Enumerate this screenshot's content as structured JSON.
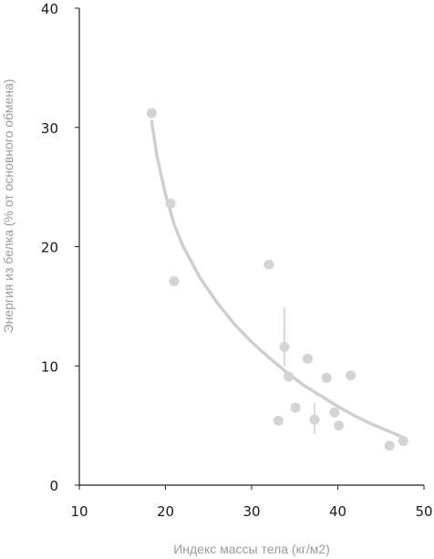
{
  "chart_data": {
    "type": "scatter",
    "title": "",
    "xlabel": "Индекс массы тела (кг/м2)",
    "ylabel": "Энергия из белка (% от основного обмена)",
    "xlim": [
      10,
      50
    ],
    "ylim": [
      0,
      40
    ],
    "xticks": [
      "10",
      "20",
      "30",
      "40",
      "50"
    ],
    "yticks": [
      "0",
      "10",
      "20",
      "30",
      "40"
    ],
    "grid": false,
    "colors": {
      "points": "#d4d4d4",
      "curve": "#cfcfcf",
      "error_bars": "#b5b5b5",
      "axis": "#222222",
      "axis_title": "#9b9b9b"
    },
    "points": [
      {
        "x": 18.4,
        "y": 31.2
      },
      {
        "x": 20.6,
        "y": 23.6
      },
      {
        "x": 21.0,
        "y": 17.1
      },
      {
        "x": 32.0,
        "y": 18.5
      },
      {
        "x": 33.8,
        "y": 11.6
      },
      {
        "x": 34.3,
        "y": 9.1
      },
      {
        "x": 35.1,
        "y": 6.5
      },
      {
        "x": 33.1,
        "y": 5.4
      },
      {
        "x": 36.5,
        "y": 10.6
      },
      {
        "x": 37.3,
        "y": 5.5
      },
      {
        "x": 38.7,
        "y": 9.0
      },
      {
        "x": 39.6,
        "y": 6.1
      },
      {
        "x": 40.1,
        "y": 5.0
      },
      {
        "x": 41.5,
        "y": 9.2
      },
      {
        "x": 46.0,
        "y": 3.3
      },
      {
        "x": 47.6,
        "y": 3.7
      }
    ],
    "error_bars": [
      {
        "x": 33.8,
        "low": 10.0,
        "high": 14.9
      },
      {
        "x": 37.3,
        "low": 4.3,
        "high": 6.9
      }
    ],
    "trend_curve": [
      {
        "x": 18.4,
        "y": 30.5
      },
      {
        "x": 19.0,
        "y": 27.6
      },
      {
        "x": 20.0,
        "y": 24.4
      },
      {
        "x": 21.0,
        "y": 21.9
      },
      {
        "x": 22.0,
        "y": 20.1
      },
      {
        "x": 24.0,
        "y": 17.4
      },
      {
        "x": 26.0,
        "y": 15.3
      },
      {
        "x": 28.0,
        "y": 13.5
      },
      {
        "x": 30.0,
        "y": 12.0
      },
      {
        "x": 32.0,
        "y": 10.7
      },
      {
        "x": 34.0,
        "y": 9.5
      },
      {
        "x": 36.0,
        "y": 8.4
      },
      {
        "x": 38.0,
        "y": 7.5
      },
      {
        "x": 40.0,
        "y": 6.6
      },
      {
        "x": 42.0,
        "y": 5.8
      },
      {
        "x": 44.0,
        "y": 5.1
      },
      {
        "x": 46.0,
        "y": 4.5
      },
      {
        "x": 47.6,
        "y": 4.0
      }
    ]
  }
}
